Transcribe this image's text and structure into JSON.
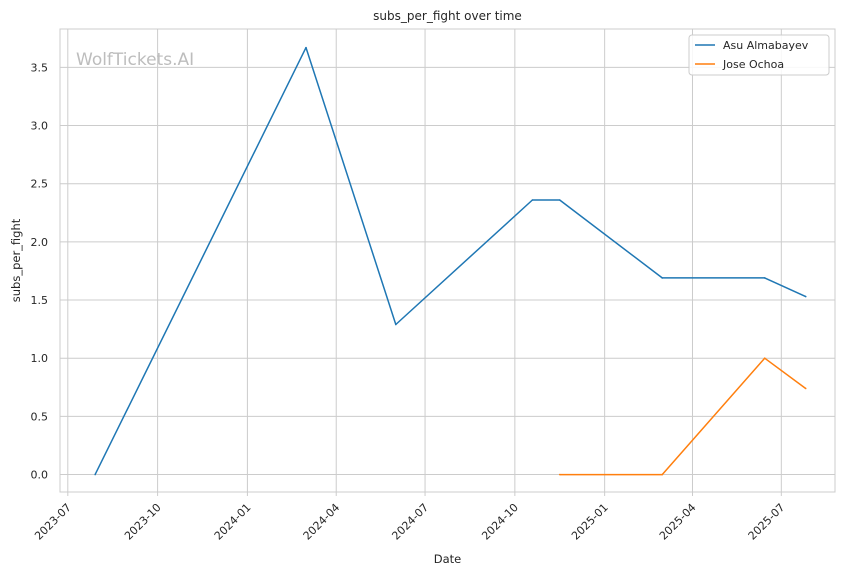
{
  "chart_data": {
    "type": "line",
    "title": "subs_per_fight over time",
    "xlabel": "Date",
    "ylabel": "subs_per_fight",
    "watermark": "WolfTickets.AI",
    "x_ticks": [
      "2023-07",
      "2023-10",
      "2024-01",
      "2024-04",
      "2024-07",
      "2024-10",
      "2025-01",
      "2025-04",
      "2025-07"
    ],
    "y_ticks": [
      "0.0",
      "0.5",
      "1.0",
      "1.5",
      "2.0",
      "2.5",
      "3.0",
      "3.5"
    ],
    "ylim": [
      -0.15,
      3.83
    ],
    "xlim": [
      "2023-06-23",
      "2025-08-25"
    ],
    "grid": true,
    "legend_position": "top-right",
    "series": [
      {
        "name": "Asu Almabayev",
        "color": "#1f77b4",
        "points": [
          {
            "x": "2023-07-29",
            "y": 0.0
          },
          {
            "x": "2024-03-01",
            "y": 3.67
          },
          {
            "x": "2024-06-01",
            "y": 1.29
          },
          {
            "x": "2024-10-19",
            "y": 2.36
          },
          {
            "x": "2024-11-16",
            "y": 2.36
          },
          {
            "x": "2025-03-01",
            "y": 1.69
          },
          {
            "x": "2025-06-14",
            "y": 1.69
          },
          {
            "x": "2025-07-26",
            "y": 1.53
          }
        ]
      },
      {
        "name": "Jose Ochoa",
        "color": "#ff7f0e",
        "points": [
          {
            "x": "2024-11-16",
            "y": 0.0
          },
          {
            "x": "2025-03-01",
            "y": 0.0
          },
          {
            "x": "2025-06-14",
            "y": 1.0
          },
          {
            "x": "2025-07-26",
            "y": 0.74
          }
        ]
      }
    ]
  }
}
